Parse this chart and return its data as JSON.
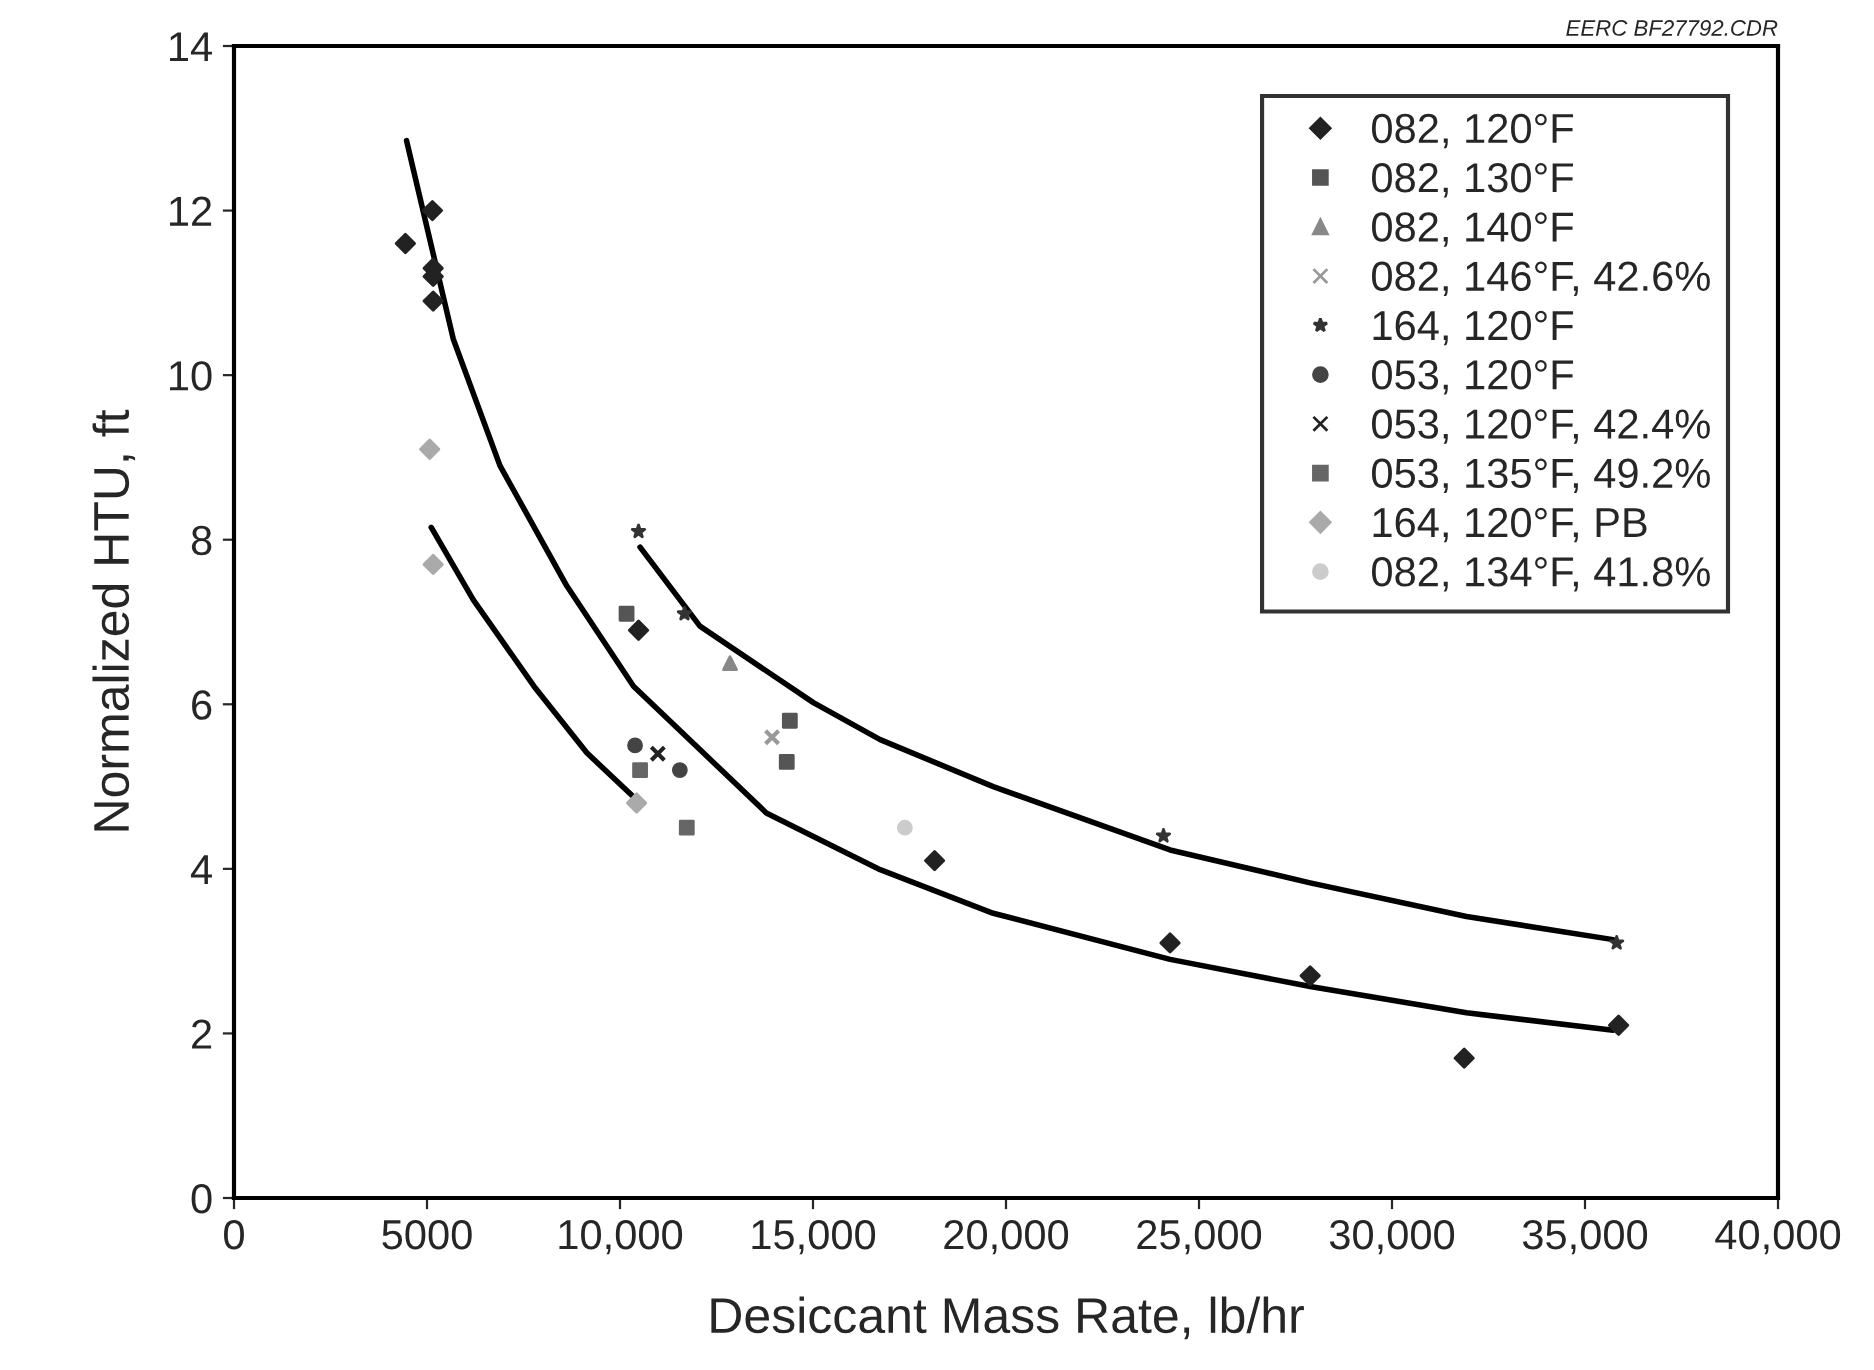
{
  "chart_data": {
    "type": "scatter",
    "xlabel": "Desiccant Mass Rate, lb/hr",
    "ylabel": "Normalized HTU, ft",
    "annotations": [
      "EERC BF27792.CDR"
    ],
    "xlim": [
      0,
      40000
    ],
    "ylim": [
      0,
      14
    ],
    "xticks": [
      0,
      5000,
      {
        "value": 10000,
        "label": "10,000"
      },
      {
        "value": 15000,
        "label": "15,000"
      },
      {
        "value": 20000,
        "label": "20,000"
      },
      {
        "value": 25000,
        "label": "25,000"
      },
      {
        "value": 30000,
        "label": "30,000"
      },
      {
        "value": 35000,
        "label": "35,000"
      },
      {
        "value": 40000,
        "label": "40,000"
      }
    ],
    "yticks": [
      0,
      2,
      4,
      6,
      8,
      10,
      12,
      14
    ],
    "grid": false,
    "legend": "top right",
    "series": [
      {
        "name": "082, 120°F",
        "marker": "diamond",
        "color": "#222222",
        "x": [
          5140,
          4440,
          5160,
          5160,
          5160,
          10480,
          18150,
          24250,
          27880,
          31870,
          35870
        ],
        "values": [
          12.0,
          11.6,
          11.3,
          11.2,
          10.9,
          6.9,
          4.1,
          3.1,
          2.7,
          1.7,
          2.1
        ]
      },
      {
        "name": "082, 130°F",
        "marker": "square",
        "color": "#555555",
        "x": [
          14400,
          14320,
          10170
        ],
        "values": [
          5.8,
          5.3,
          7.1
        ]
      },
      {
        "name": "082, 140°F",
        "marker": "triangle",
        "color": "#888888",
        "x": [
          12850
        ],
        "values": [
          6.5
        ]
      },
      {
        "name": "082, 146°F, 42.6%",
        "marker": "cross",
        "color": "#999999",
        "x": [
          13940
        ],
        "values": [
          5.6
        ]
      },
      {
        "name": "164, 120°F",
        "marker": "star",
        "color": "#333333",
        "x": [
          10480,
          11670,
          24080,
          35820
        ],
        "values": [
          8.1,
          7.1,
          4.4,
          3.1
        ]
      },
      {
        "name": "053, 120°F",
        "marker": "circle",
        "color": "#444444",
        "x": [
          10390,
          11550
        ],
        "values": [
          5.5,
          5.2
        ]
      },
      {
        "name": "053, 120°F, 42.4%",
        "marker": "cross",
        "color": "#222222",
        "x": [
          10980
        ],
        "values": [
          5.4
        ]
      },
      {
        "name": "053, 135°F, 49.2%",
        "marker": "square",
        "color": "#666666",
        "x": [
          10520,
          11730
        ],
        "values": [
          5.2,
          4.5
        ]
      },
      {
        "name": "164, 120°F, PB",
        "marker": "diamond",
        "color": "#aaaaaa",
        "x": [
          5070,
          5160,
          10430
        ],
        "values": [
          9.1,
          7.7,
          4.8
        ]
      },
      {
        "name": "082, 134°F, 41.8%",
        "marker": "circle",
        "color": "#cccccc",
        "x": [
          17380
        ],
        "values": [
          4.5
        ]
      },
      {
        "type": "line",
        "marker": "none",
        "color": "#000000",
        "x": [
          4470,
          5680,
          6890,
          8620,
          10350,
          13790,
          16740,
          19670,
          24250,
          27880,
          31930,
          35730
        ],
        "values": [
          12.85,
          10.44,
          8.9,
          7.44,
          6.22,
          4.68,
          3.99,
          3.46,
          2.9,
          2.57,
          2.25,
          2.04
        ]
      },
      {
        "type": "line",
        "marker": "none",
        "color": "#000000",
        "x": [
          5110,
          6200,
          7770,
          9140,
          10430
        ],
        "values": [
          8.15,
          7.27,
          6.22,
          5.41,
          4.84
        ]
      },
      {
        "type": "line",
        "marker": "none",
        "color": "#000000",
        "x": [
          10520,
          12070,
          15010,
          16740,
          19670,
          24250,
          27880,
          31930,
          35730
        ],
        "values": [
          7.91,
          6.95,
          6.02,
          5.57,
          5.0,
          4.23,
          3.83,
          3.42,
          3.14
        ]
      }
    ]
  }
}
